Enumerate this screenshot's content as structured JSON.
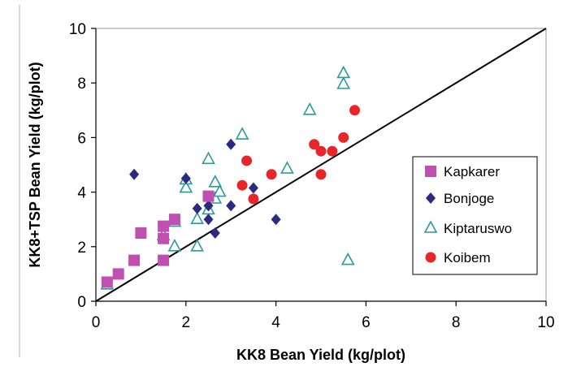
{
  "chart_data": {
    "type": "scatter",
    "xlabel": "KK8 Bean Yield (kg/plot)",
    "ylabel": "KK8+TSP Bean Yield (kg/plot)",
    "xlim": [
      0,
      10
    ],
    "ylim": [
      0,
      10
    ],
    "xticks": [
      "0",
      "2",
      "4",
      "6",
      "8",
      "10"
    ],
    "yticks": [
      "0",
      "2",
      "4",
      "6",
      "8",
      "10"
    ],
    "grid": false,
    "legend_position": "right",
    "reference_line": {
      "from": [
        0,
        0
      ],
      "to": [
        10,
        10
      ]
    },
    "series": [
      {
        "name": "Kapkarer",
        "marker": "square",
        "color": "#c050b0",
        "points": [
          [
            0.25,
            0.7
          ],
          [
            0.5,
            1.0
          ],
          [
            0.85,
            1.5
          ],
          [
            1.0,
            2.5
          ],
          [
            1.5,
            1.5
          ],
          [
            1.5,
            2.3
          ],
          [
            1.5,
            2.75
          ],
          [
            1.75,
            3.0
          ],
          [
            2.5,
            3.85
          ]
        ]
      },
      {
        "name": "Bonjoge",
        "marker": "diamond",
        "color": "#2b2a80",
        "points": [
          [
            0.85,
            4.65
          ],
          [
            2.0,
            4.5
          ],
          [
            2.25,
            3.4
          ],
          [
            2.5,
            3.0
          ],
          [
            2.5,
            3.5
          ],
          [
            2.65,
            2.5
          ],
          [
            3.0,
            3.5
          ],
          [
            3.0,
            5.75
          ],
          [
            3.5,
            4.15
          ],
          [
            4.0,
            3.0
          ]
        ]
      },
      {
        "name": "Kiptaruswo",
        "marker": "triangle",
        "color": "#2a9a9a",
        "points": [
          [
            0.25,
            0.6
          ],
          [
            1.5,
            2.4
          ],
          [
            1.75,
            2.0
          ],
          [
            1.75,
            2.9
          ],
          [
            2.0,
            4.15
          ],
          [
            2.0,
            4.45
          ],
          [
            2.25,
            2.0
          ],
          [
            2.25,
            3.0
          ],
          [
            2.5,
            3.35
          ],
          [
            2.5,
            5.2
          ],
          [
            2.65,
            3.75
          ],
          [
            2.65,
            4.35
          ],
          [
            2.75,
            4.0
          ],
          [
            3.25,
            6.1
          ],
          [
            4.25,
            4.85
          ],
          [
            4.75,
            7.0
          ],
          [
            5.5,
            7.95
          ],
          [
            5.5,
            8.35
          ],
          [
            5.6,
            1.5
          ]
        ]
      },
      {
        "name": "Koibem",
        "marker": "circle",
        "color": "#e8262a",
        "points": [
          [
            3.25,
            4.25
          ],
          [
            3.35,
            5.15
          ],
          [
            3.5,
            3.75
          ],
          [
            3.9,
            4.65
          ],
          [
            4.85,
            5.75
          ],
          [
            5.0,
            5.5
          ],
          [
            5.0,
            4.65
          ],
          [
            5.25,
            5.5
          ],
          [
            5.5,
            6.0
          ],
          [
            5.75,
            7.0
          ]
        ]
      }
    ]
  }
}
